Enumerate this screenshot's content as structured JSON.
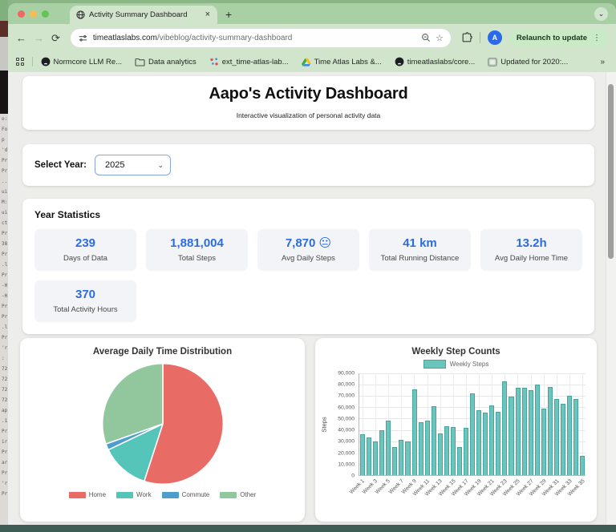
{
  "browser": {
    "tab": {
      "title": "Activity Summary Dashboard"
    },
    "url": {
      "domain": "timeatlaslabs.com",
      "path": "/vibeblog/activity-summary-dashboard"
    },
    "avatar": "A",
    "relaunch_label": "Relaunch to update",
    "icons": {
      "back": "←",
      "forward": "→",
      "reload": "⟳",
      "close": "×",
      "plus": "+",
      "chevron_down": "⌄",
      "star": "☆",
      "kebab": "⋮",
      "overflow": "»",
      "select_chevron": "⌄"
    },
    "bookmarks": [
      {
        "icon": "github",
        "label": "Normcore LLM Re..."
      },
      {
        "icon": "folder",
        "label": "Data analytics"
      },
      {
        "icon": "scatter",
        "label": "ext_time-atlas-lab..."
      },
      {
        "icon": "drive",
        "label": "Time Atlas Labs &..."
      },
      {
        "icon": "github",
        "label": "timeatlaslabs/core..."
      },
      {
        "icon": "thumbnail",
        "label": "Updated for 2020:..."
      }
    ]
  },
  "page": {
    "header": {
      "title": "Aapo's Activity Dashboard",
      "subtitle": "Interactive visualization of personal activity data"
    },
    "year_selector": {
      "label": "Select Year:",
      "value": "2025"
    },
    "stats": {
      "heading": "Year Statistics",
      "items": [
        {
          "value": "239",
          "label": "Days of Data"
        },
        {
          "value": "1,881,004",
          "label": "Total Steps"
        },
        {
          "value": "7,870 😐",
          "label": "Avg Daily Steps"
        },
        {
          "value": "41 km",
          "label": "Total Running Distance"
        },
        {
          "value": "13.2h",
          "label": "Avg Daily Home Time"
        },
        {
          "value": "370",
          "label": "Total Activity Hours"
        }
      ]
    },
    "accent_color": "#2b6ce0"
  },
  "chart_data": [
    {
      "type": "pie",
      "title": "Average Daily Time Distribution",
      "labels": [
        "Home",
        "Work",
        "Commute",
        "Other"
      ],
      "values": [
        13.2,
        3.1,
        0.4,
        7.3
      ],
      "unit": "hours",
      "colors": [
        "#e96b66",
        "#54c5b8",
        "#4d9ecf",
        "#92c79d"
      ],
      "legend_position": "bottom",
      "start_angle": "top",
      "direction": "clockwise"
    },
    {
      "type": "bar",
      "title": "Weekly Step Counts",
      "series": [
        {
          "name": "Weekly Steps",
          "values": [
            36000,
            33000,
            29500,
            40000,
            48500,
            24500,
            31000,
            30000,
            76000,
            46500,
            48500,
            61000,
            37000,
            43500,
            42500,
            25000,
            42000,
            72000,
            57500,
            55500,
            62000,
            56000,
            83000,
            69500,
            77000,
            77500,
            75000,
            80000,
            58500,
            78000,
            67000,
            63000,
            70500,
            67000,
            17000
          ]
        }
      ],
      "categories": [
        "Week 1",
        "Week 2",
        "Week 3",
        "Week 4",
        "Week 5",
        "Week 6",
        "Week 7",
        "Week 8",
        "Week 9",
        "Week 10",
        "Week 11",
        "Week 12",
        "Week 13",
        "Week 14",
        "Week 15",
        "Week 16",
        "Week 17",
        "Week 18",
        "Week 19",
        "Week 20",
        "Week 21",
        "Week 22",
        "Week 23",
        "Week 24",
        "Week 25",
        "Week 26",
        "Week 27",
        "Week 28",
        "Week 29",
        "Week 30",
        "Week 31",
        "Week 32",
        "Week 33",
        "Week 34",
        "Week 35"
      ],
      "ylabel": "Steps",
      "ylim": [
        0,
        90000
      ],
      "ytick_step": 10000,
      "x_label_every": 2,
      "bar_color": "#6bc5bd",
      "bar_border": "#46a49c",
      "grid": true,
      "legend_position": "top"
    }
  ],
  "background_window": {
    "fragments": [
      "o:",
      "Fo",
      "p",
      "'d",
      "Pr",
      "Pr",
      "..",
      "ui",
      "M:",
      "ui",
      "ct",
      "Pr",
      "38",
      "Pr",
      ".l",
      "Pr",
      "-H",
      "-H",
      "Pr",
      "Pr",
      ".l",
      "Pr",
      "'r",
      ":",
      "72",
      "72",
      "72",
      "72",
      "ap",
      ".1",
      "Pr",
      "ir",
      "Pr",
      "ar",
      "Pr",
      "'r",
      "Pr"
    ]
  }
}
